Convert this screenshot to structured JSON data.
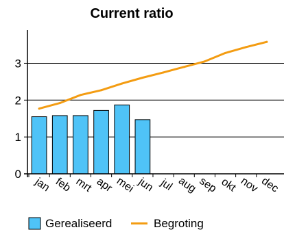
{
  "chart_data": {
    "type": "bar",
    "title": "Current ratio",
    "categories": [
      "jan",
      "feb",
      "mrt",
      "apr",
      "mei",
      "jun",
      "jul",
      "aug",
      "sep",
      "okt",
      "nov",
      "dec"
    ],
    "series": [
      {
        "name": "Gerealiseerd",
        "type": "bar",
        "color": "#4fc3f7",
        "values": [
          1.55,
          1.58,
          1.58,
          1.72,
          1.87,
          1.47,
          null,
          null,
          null,
          null,
          null,
          null
        ]
      },
      {
        "name": "Begroting",
        "type": "line",
        "color": "#f39c12",
        "values": [
          1.77,
          1.92,
          2.14,
          2.27,
          2.45,
          2.61,
          2.75,
          2.9,
          3.05,
          3.28,
          3.44,
          3.58
        ]
      }
    ],
    "yticks": [
      0,
      1,
      2,
      3
    ],
    "ylim": [
      0,
      3.9
    ],
    "grid": true,
    "legend": "bottom"
  }
}
